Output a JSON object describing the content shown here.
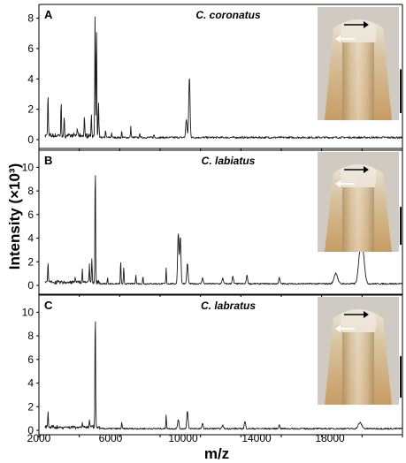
{
  "figure": {
    "ylabel": "Intensity (×10³)",
    "xlabel": "m/z",
    "x_ticks": [
      "2000",
      "6000",
      "10000",
      "14000",
      "18000"
    ]
  },
  "chart_data": [
    {
      "type": "line",
      "panel": "A",
      "title": "C. coronatus",
      "xlim": [
        2000,
        20000
      ],
      "ylim": [
        0,
        8.5
      ],
      "yticks": [
        0,
        2,
        4,
        6,
        8
      ],
      "peaks": [
        {
          "x": 2450,
          "y": 2.9
        },
        {
          "x": 3100,
          "y": 2.2
        },
        {
          "x": 3250,
          "y": 1.1
        },
        {
          "x": 3900,
          "y": 0.5
        },
        {
          "x": 4250,
          "y": 1.2
        },
        {
          "x": 4600,
          "y": 1.3
        },
        {
          "x": 4780,
          "y": 8.0
        },
        {
          "x": 4850,
          "y": 7.3
        },
        {
          "x": 4950,
          "y": 2.2
        },
        {
          "x": 5300,
          "y": 0.5
        },
        {
          "x": 5600,
          "y": 0.3
        },
        {
          "x": 6100,
          "y": 0.4
        },
        {
          "x": 6550,
          "y": 0.7
        },
        {
          "x": 7000,
          "y": 0.3
        },
        {
          "x": 7700,
          "y": 0.2
        },
        {
          "x": 9450,
          "y": 4.0
        },
        {
          "x": 9300,
          "y": 1.2
        }
      ],
      "image_panel": {
        "scale_bar": true
      }
    },
    {
      "type": "line",
      "panel": "B",
      "title": "C. labiatus",
      "xlim": [
        2000,
        20000
      ],
      "ylim": [
        0,
        11
      ],
      "yticks": [
        0,
        2,
        4,
        6,
        8,
        10
      ],
      "peaks": [
        {
          "x": 2450,
          "y": 1.8
        },
        {
          "x": 3800,
          "y": 0.4
        },
        {
          "x": 4150,
          "y": 1.1
        },
        {
          "x": 4500,
          "y": 1.5
        },
        {
          "x": 4620,
          "y": 2.0
        },
        {
          "x": 4790,
          "y": 10.3
        },
        {
          "x": 5400,
          "y": 0.5
        },
        {
          "x": 6050,
          "y": 2.0
        },
        {
          "x": 6200,
          "y": 1.4
        },
        {
          "x": 6800,
          "y": 0.8
        },
        {
          "x": 7150,
          "y": 0.6
        },
        {
          "x": 8300,
          "y": 1.3
        },
        {
          "x": 8900,
          "y": 4.3
        },
        {
          "x": 9000,
          "y": 4.0
        },
        {
          "x": 9350,
          "y": 1.7
        },
        {
          "x": 10100,
          "y": 0.5
        },
        {
          "x": 11100,
          "y": 0.5
        },
        {
          "x": 11600,
          "y": 0.6
        },
        {
          "x": 12300,
          "y": 0.7
        },
        {
          "x": 13900,
          "y": 0.5
        },
        {
          "x": 16700,
          "y": 0.9
        },
        {
          "x": 17900,
          "y": 2.5
        },
        {
          "x": 18050,
          "y": 2.3
        }
      ],
      "image_panel": {
        "scale_bar": true
      }
    },
    {
      "type": "line",
      "panel": "C",
      "title": "C. labratus",
      "xlim": [
        2000,
        20000
      ],
      "ylim": [
        0,
        11
      ],
      "yticks": [
        0,
        2,
        4,
        6,
        8,
        10
      ],
      "peaks": [
        {
          "x": 2450,
          "y": 1.3
        },
        {
          "x": 4150,
          "y": 0.4
        },
        {
          "x": 4500,
          "y": 0.6
        },
        {
          "x": 4790,
          "y": 10.0
        },
        {
          "x": 6100,
          "y": 0.5
        },
        {
          "x": 8300,
          "y": 1.2
        },
        {
          "x": 8900,
          "y": 0.8
        },
        {
          "x": 9350,
          "y": 1.5
        },
        {
          "x": 10100,
          "y": 0.4
        },
        {
          "x": 11100,
          "y": 0.3
        },
        {
          "x": 12200,
          "y": 0.6
        },
        {
          "x": 13900,
          "y": 0.3
        },
        {
          "x": 17900,
          "y": 0.5
        }
      ],
      "image_panel": {
        "scale_bar": true
      }
    }
  ],
  "colors": {
    "line": "#1a1a1a",
    "axis": "#000000",
    "photo_bg": "#cfcbc3",
    "photo_body": "#c9a574",
    "photo_bright": "#efe9df",
    "scale_bar": "#111111",
    "arrow_black": "#000000",
    "arrow_white": "#ffffff"
  }
}
